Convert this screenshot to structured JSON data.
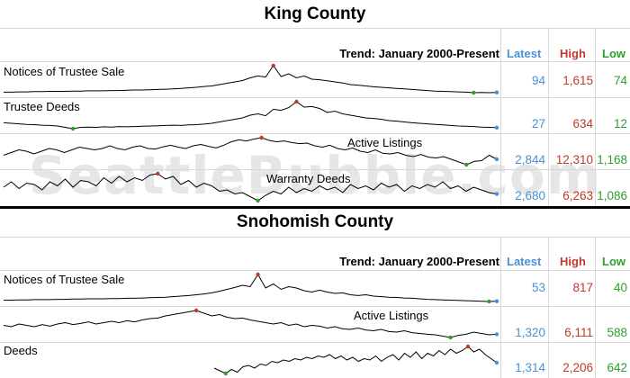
{
  "watermark": "SeattleBubble.com",
  "colors": {
    "latest": "#4a90d9",
    "high": "#c0392b",
    "low": "#2e9e2e",
    "line": "#000000"
  },
  "columns": {
    "trend": "Trend: January 2000-Present",
    "latest": "Latest",
    "high": "High",
    "low": "Low"
  },
  "chart_data": [
    {
      "type": "line",
      "title": "King County",
      "series": [
        {
          "name": "Notices of Trustee Sale",
          "latest": "94",
          "high": "1,615",
          "low": "74",
          "values": [
            0.02,
            0.02,
            0.03,
            0.03,
            0.04,
            0.04,
            0.05,
            0.05,
            0.05,
            0.06,
            0.06,
            0.07,
            0.07,
            0.07,
            0.08,
            0.08,
            0.09,
            0.1,
            0.1,
            0.11,
            0.12,
            0.13,
            0.14,
            0.16,
            0.18,
            0.2,
            0.23,
            0.25,
            0.3,
            0.35,
            0.4,
            0.45,
            0.55,
            0.62,
            0.58,
            1.0,
            0.6,
            0.7,
            0.55,
            0.62,
            0.5,
            0.48,
            0.44,
            0.4,
            0.36,
            0.3,
            0.28,
            0.25,
            0.22,
            0.2,
            0.18,
            0.16,
            0.14,
            0.12,
            0.1,
            0.08,
            0.06,
            0.05,
            0.04,
            0.03,
            0.02,
            0.0,
            0.01,
            0.0,
            0.01
          ]
        },
        {
          "name": "Trustee Deeds",
          "latest": "27",
          "high": "634",
          "low": "12",
          "values": [
            0.22,
            0.2,
            0.18,
            0.16,
            0.15,
            0.13,
            0.12,
            0.1,
            0.05,
            0.0,
            0.05,
            0.06,
            0.05,
            0.07,
            0.06,
            0.08,
            0.07,
            0.08,
            0.09,
            0.1,
            0.11,
            0.12,
            0.13,
            0.12,
            0.14,
            0.15,
            0.17,
            0.2,
            0.25,
            0.3,
            0.35,
            0.4,
            0.5,
            0.55,
            0.48,
            0.72,
            0.68,
            0.78,
            1.0,
            0.8,
            0.82,
            0.75,
            0.6,
            0.65,
            0.55,
            0.5,
            0.45,
            0.4,
            0.38,
            0.35,
            0.3,
            0.28,
            0.25,
            0.22,
            0.2,
            0.18,
            0.16,
            0.14,
            0.12,
            0.1,
            0.09,
            0.08,
            0.06,
            0.05,
            0.04
          ]
        },
        {
          "name": "Active Listings",
          "latest": "2,844",
          "high": "12,310",
          "low": "1,168",
          "values": [
            0.35,
            0.45,
            0.55,
            0.5,
            0.4,
            0.5,
            0.6,
            0.55,
            0.45,
            0.55,
            0.65,
            0.6,
            0.55,
            0.6,
            0.7,
            0.6,
            0.55,
            0.65,
            0.7,
            0.6,
            0.58,
            0.66,
            0.72,
            0.65,
            0.6,
            0.7,
            0.75,
            0.68,
            0.62,
            0.72,
            0.85,
            0.92,
            0.88,
            0.95,
            1.0,
            0.9,
            0.85,
            0.88,
            0.82,
            0.78,
            0.8,
            0.7,
            0.65,
            0.72,
            0.6,
            0.55,
            0.62,
            0.5,
            0.45,
            0.55,
            0.42,
            0.4,
            0.45,
            0.35,
            0.3,
            0.38,
            0.28,
            0.25,
            0.3,
            0.2,
            0.1,
            0.0,
            0.12,
            0.15,
            0.35,
            0.2
          ]
        },
        {
          "name": "Warranty Deeds",
          "latest": "2,680",
          "high": "6,263",
          "low": "1,086",
          "values": [
            0.5,
            0.7,
            0.45,
            0.65,
            0.6,
            0.4,
            0.7,
            0.55,
            0.8,
            0.5,
            0.75,
            0.7,
            0.55,
            0.85,
            0.65,
            0.9,
            0.7,
            0.85,
            0.75,
            0.95,
            1.0,
            0.8,
            0.9,
            0.6,
            0.75,
            0.5,
            0.65,
            0.55,
            0.35,
            0.4,
            0.25,
            0.3,
            0.15,
            0.0,
            0.2,
            0.35,
            0.25,
            0.5,
            0.3,
            0.45,
            0.35,
            0.55,
            0.4,
            0.5,
            0.3,
            0.6,
            0.45,
            0.55,
            0.4,
            0.65,
            0.5,
            0.6,
            0.35,
            0.55,
            0.45,
            0.6,
            0.5,
            0.7,
            0.45,
            0.55,
            0.35,
            0.5,
            0.4,
            0.3,
            0.25
          ]
        }
      ]
    },
    {
      "type": "line",
      "title": "Snohomish County",
      "series": [
        {
          "name": "Notices of Trustee Sale",
          "latest": "53",
          "high": "817",
          "low": "40",
          "values": [
            0.05,
            0.05,
            0.06,
            0.06,
            0.07,
            0.07,
            0.07,
            0.08,
            0.08,
            0.09,
            0.09,
            0.1,
            0.1,
            0.1,
            0.11,
            0.11,
            0.12,
            0.12,
            0.13,
            0.14,
            0.15,
            0.16,
            0.18,
            0.2,
            0.22,
            0.25,
            0.28,
            0.32,
            0.38,
            0.45,
            0.52,
            0.6,
            0.55,
            1.0,
            0.5,
            0.65,
            0.45,
            0.55,
            0.5,
            0.4,
            0.35,
            0.42,
            0.35,
            0.3,
            0.32,
            0.25,
            0.22,
            0.25,
            0.2,
            0.18,
            0.16,
            0.15,
            0.13,
            0.12,
            0.1,
            0.08,
            0.07,
            0.06,
            0.05,
            0.04,
            0.03,
            0.02,
            0.01,
            0.0,
            0.01
          ]
        },
        {
          "name": "Active Listings",
          "latest": "1,320",
          "high": "6,111",
          "low": "588",
          "values": [
            0.45,
            0.4,
            0.5,
            0.45,
            0.4,
            0.48,
            0.42,
            0.5,
            0.55,
            0.48,
            0.52,
            0.58,
            0.5,
            0.55,
            0.6,
            0.55,
            0.62,
            0.58,
            0.65,
            0.7,
            0.72,
            0.8,
            0.85,
            0.9,
            0.95,
            1.0,
            0.9,
            0.8,
            0.85,
            0.75,
            0.7,
            0.72,
            0.65,
            0.6,
            0.55,
            0.5,
            0.55,
            0.45,
            0.5,
            0.4,
            0.45,
            0.42,
            0.35,
            0.4,
            0.32,
            0.3,
            0.35,
            0.28,
            0.25,
            0.3,
            0.22,
            0.2,
            0.25,
            0.18,
            0.15,
            0.12,
            0.1,
            0.05,
            0.0,
            0.08,
            0.12,
            0.2,
            0.15,
            0.1,
            0.12
          ]
        },
        {
          "name": "Deeds",
          "latest": "1,314",
          "high": "2,206",
          "low": "642",
          "values": [
            0.2,
            0.1,
            0.0,
            0.15,
            0.05,
            0.25,
            0.3,
            0.2,
            0.35,
            0.3,
            0.45,
            0.4,
            0.5,
            0.45,
            0.55,
            0.5,
            0.6,
            0.55,
            0.65,
            0.6,
            0.7,
            0.55,
            0.65,
            0.5,
            0.6,
            0.45,
            0.55,
            0.5,
            0.65,
            0.45,
            0.6,
            0.7,
            0.5,
            0.75,
            0.6,
            0.8,
            0.55,
            0.75,
            0.65,
            0.85,
            0.7,
            0.9,
            0.75,
            0.85,
            1.0,
            0.8,
            0.9,
            0.7,
            0.55,
            0.4
          ]
        }
      ]
    }
  ]
}
